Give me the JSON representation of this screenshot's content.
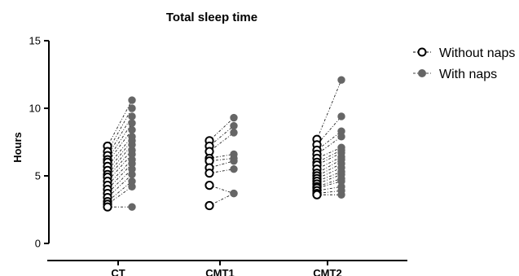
{
  "chart_data": {
    "type": "scatter",
    "title": "Total sleep time",
    "ylabel": "Hours",
    "xlabel": "",
    "ylim": [
      0,
      15
    ],
    "yticks": [
      0,
      5,
      10,
      15
    ],
    "categories": [
      "CT",
      "CMT1",
      "CMT2"
    ],
    "grid": false,
    "legend_position": "top-right",
    "series": [
      {
        "name": "Without naps",
        "marker": "open-circle",
        "color": "#000000"
      },
      {
        "name": "With naps",
        "marker": "filled-circle",
        "color": "#666666"
      }
    ],
    "groups": [
      {
        "category": "CT",
        "pairs": [
          [
            7.2,
            10.6
          ],
          [
            6.8,
            10.0
          ],
          [
            6.5,
            9.4
          ],
          [
            6.2,
            8.9
          ],
          [
            6.0,
            8.4
          ],
          [
            5.7,
            7.9
          ],
          [
            5.4,
            7.6
          ],
          [
            5.1,
            7.3
          ],
          [
            4.9,
            6.9
          ],
          [
            4.6,
            6.6
          ],
          [
            4.3,
            6.2
          ],
          [
            4.0,
            5.9
          ],
          [
            3.7,
            5.5
          ],
          [
            3.4,
            5.1
          ],
          [
            3.1,
            4.6
          ],
          [
            2.9,
            4.2
          ],
          [
            2.7,
            2.7
          ]
        ]
      },
      {
        "category": "CMT1",
        "pairs": [
          [
            7.6,
            9.3
          ],
          [
            7.2,
            8.7
          ],
          [
            6.8,
            8.2
          ],
          [
            6.3,
            6.6
          ],
          [
            6.1,
            6.3
          ],
          [
            5.6,
            6.1
          ],
          [
            5.2,
            5.5
          ],
          [
            4.3,
            3.7
          ],
          [
            2.8,
            3.7
          ]
        ]
      },
      {
        "category": "CMT2",
        "pairs": [
          [
            7.7,
            12.1
          ],
          [
            7.3,
            9.4
          ],
          [
            6.9,
            8.3
          ],
          [
            6.6,
            7.9
          ],
          [
            6.3,
            7.1
          ],
          [
            6.0,
            6.9
          ],
          [
            5.8,
            6.7
          ],
          [
            5.5,
            6.4
          ],
          [
            5.2,
            6.2
          ],
          [
            5.0,
            5.9
          ],
          [
            4.8,
            5.6
          ],
          [
            4.6,
            5.3
          ],
          [
            4.4,
            5.1
          ],
          [
            4.2,
            4.8
          ],
          [
            4.1,
            4.6
          ],
          [
            3.9,
            4.2
          ],
          [
            3.7,
            3.9
          ],
          [
            3.6,
            3.6
          ]
        ]
      }
    ]
  }
}
